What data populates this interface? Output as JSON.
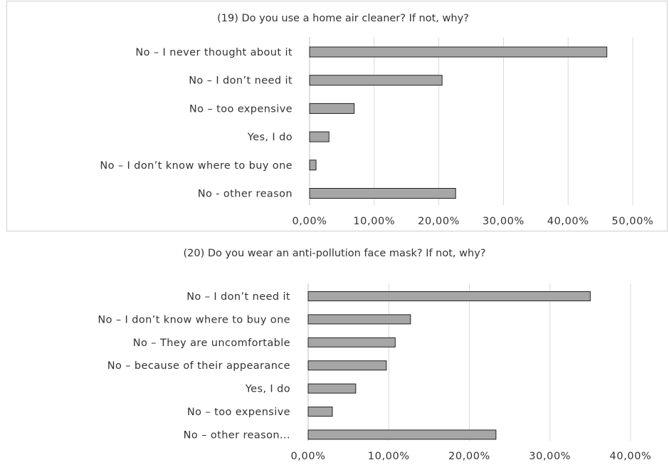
{
  "chart_data": [
    {
      "type": "bar",
      "orientation": "horizontal",
      "title": "(19) Do you use a home air cleaner? If not, why?",
      "categories": [
        "No – I never thought about it",
        "No – I don’t need it",
        "No – too expensive",
        "Yes, I do",
        "No – I don’t know where to buy one",
        "No - other reason"
      ],
      "values": [
        46.0,
        20.5,
        6.9,
        3.0,
        1.0,
        22.6
      ],
      "xlim": [
        0,
        50
      ],
      "tick_labels": [
        "0,00%",
        "10,00%",
        "20,00%",
        "30,00%",
        "40,00%",
        "50,00%"
      ],
      "grid": true,
      "legend": "none",
      "bar_color": "#a6a6a6"
    },
    {
      "type": "bar",
      "orientation": "horizontal",
      "title": "(20) Do you wear an anti-pollution face mask? If not, why?",
      "categories": [
        "No – I don’t need it",
        "No – I don’t know where to buy one",
        "No – They are uncomfortable",
        "No – because of their appearance",
        "Yes, I do",
        "No – too expensive",
        "No – other reason..."
      ],
      "values": [
        35.0,
        12.7,
        10.8,
        9.7,
        5.9,
        3.0,
        23.3
      ],
      "xlim": [
        0,
        40
      ],
      "tick_labels": [
        "0,00%",
        "10,00%",
        "20,00%",
        "30,00%",
        "40,00%"
      ],
      "grid": true,
      "legend": "none",
      "bar_color": "#a6a6a6"
    }
  ]
}
